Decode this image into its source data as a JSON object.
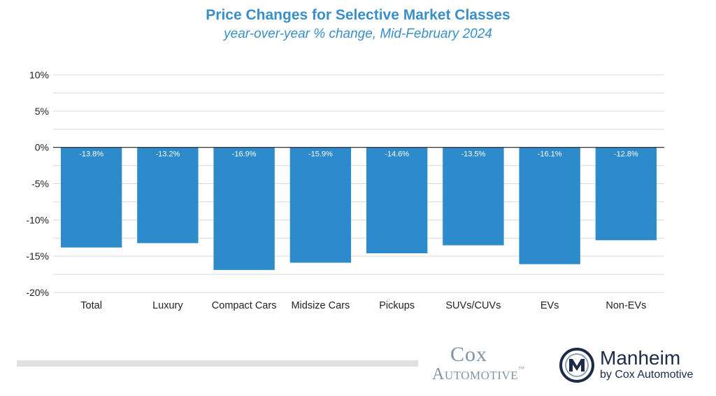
{
  "chart_data": {
    "type": "bar",
    "title": "Price Changes for Selective Market Classes",
    "subtitle": "year-over-year % change, Mid-February 2024",
    "categories": [
      "Total",
      "Luxury",
      "Compact Cars",
      "Midsize Cars",
      "Pickups",
      "SUVs/CUVs",
      "EVs",
      "Non-EVs"
    ],
    "values": [
      -13.8,
      -13.2,
      -16.9,
      -15.9,
      -14.6,
      -13.5,
      -16.1,
      -12.8
    ],
    "data_labels": [
      "-13.8%",
      "-13.2%",
      "-16.9%",
      "-15.9%",
      "-14.6%",
      "-13.5%",
      "-16.1%",
      "-12.8%"
    ],
    "yticks": [
      10,
      5,
      0,
      -5,
      -10,
      -15,
      -20
    ],
    "ytick_labels": [
      "10%",
      "5%",
      "0%",
      "-5%",
      "-10%",
      "-15%",
      "-20%"
    ],
    "ylim": [
      -20,
      10
    ],
    "minor_grid_step": 2.5,
    "grid": true,
    "legend": "none",
    "bar_color": "#2e8bcb"
  },
  "logos": {
    "cox_line1": "Cox",
    "cox_line2": "Automotive",
    "cox_tm": "™",
    "manheim_name": "Manheim",
    "manheim_sub": "by Cox Automotive"
  }
}
